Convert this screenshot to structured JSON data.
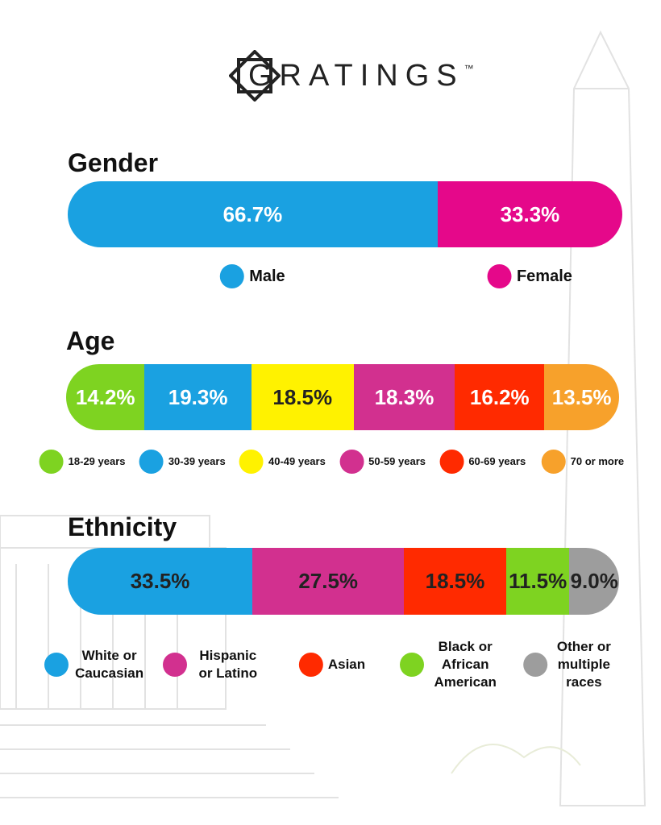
{
  "header": {
    "logo": "GRATINGS",
    "trademark": "™"
  },
  "chart_data": [
    {
      "type": "stacked-bar-100",
      "title": "Gender",
      "series": [
        {
          "name": "Male",
          "color": "#1aa1e1",
          "values": [
            66.7
          ],
          "value_labels": [
            "66.7%"
          ]
        },
        {
          "name": "Female",
          "color": "#e5088a",
          "values": [
            33.3
          ],
          "value_labels": [
            "33.3%"
          ]
        }
      ]
    },
    {
      "type": "stacked-bar-100",
      "title": "Age",
      "series": [
        {
          "name": "18-29 years",
          "color": "#7ed321",
          "values": [
            14.2
          ],
          "value_labels": [
            "14.2%"
          ]
        },
        {
          "name": "30-39 years",
          "color": "#1aa1e1",
          "values": [
            19.3
          ],
          "value_labels": [
            "19.3%"
          ]
        },
        {
          "name": "40-49 years",
          "color": "#fff200",
          "values": [
            18.5
          ],
          "value_labels": [
            "18.5%"
          ]
        },
        {
          "name": "50-59 years",
          "color": "#d2308f",
          "values": [
            18.3
          ],
          "value_labels": [
            "18.3%"
          ]
        },
        {
          "name": "60-69 years",
          "color": "#ff2a00",
          "values": [
            16.2
          ],
          "value_labels": [
            "16.2%"
          ]
        },
        {
          "name": "70 or more",
          "color": "#f7a12b",
          "values": [
            13.5
          ],
          "value_labels": [
            "13.5%"
          ]
        }
      ]
    },
    {
      "type": "stacked-bar-100",
      "title": "Ethnicity",
      "value_label_color": "#222222",
      "series": [
        {
          "name": "White or Caucasian",
          "color": "#1aa1e1",
          "values": [
            33.5
          ],
          "value_labels": [
            "33.5%"
          ]
        },
        {
          "name": "Hispanic or Latino",
          "color": "#d2308f",
          "values": [
            27.5
          ],
          "value_labels": [
            "27.5%"
          ]
        },
        {
          "name": "Asian",
          "color": "#ff2a00",
          "values": [
            18.5
          ],
          "value_labels": [
            "18.5%"
          ]
        },
        {
          "name": "Black or African American",
          "color": "#7ed321",
          "values": [
            11.5
          ],
          "value_labels": [
            "11.5%"
          ]
        },
        {
          "name": "Other or multiple races",
          "color": "#9d9d9d",
          "values": [
            9.0
          ],
          "value_labels": [
            "9.0%"
          ]
        }
      ]
    }
  ]
}
